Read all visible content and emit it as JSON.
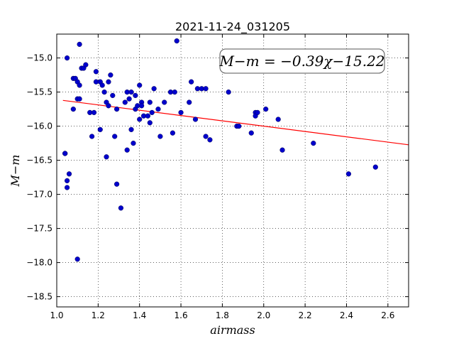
{
  "chart_data": {
    "type": "scatter",
    "title": "2021-11-24_031205",
    "xlabel": "airmass",
    "ylabel": "M−m",
    "xlim": [
      1.0,
      2.7
    ],
    "ylim": [
      -18.65,
      -14.65
    ],
    "y_inverted": true,
    "grid": true,
    "x_ticks": [
      "1.0",
      "1.2",
      "1.4",
      "1.6",
      "1.8",
      "2.0",
      "2.2",
      "2.4",
      "2.6"
    ],
    "x_tick_values": [
      1.0,
      1.2,
      1.4,
      1.6,
      1.8,
      2.0,
      2.2,
      2.4,
      2.6
    ],
    "y_ticks": [
      "−15.0",
      "−15.5",
      "−16.0",
      "−16.5",
      "−17.0",
      "−17.5",
      "−18.0",
      "−18.5"
    ],
    "y_tick_values": [
      -15.0,
      -15.5,
      -16.0,
      -16.5,
      -17.0,
      -17.5,
      -18.0,
      -18.5
    ],
    "annotation": "M−m = −0.39χ−15.22",
    "fit_line": {
      "slope": -0.39,
      "intercept": -15.22,
      "color": "#ff0000"
    },
    "point_color": "#0000cc",
    "points": [
      [
        1.04,
        -16.4
      ],
      [
        1.04,
        -16.4
      ],
      [
        1.05,
        -16.9
      ],
      [
        1.05,
        -16.8
      ],
      [
        1.05,
        -15.0
      ],
      [
        1.06,
        -16.7
      ],
      [
        1.08,
        -15.3
      ],
      [
        1.08,
        -15.75
      ],
      [
        1.09,
        -15.3
      ],
      [
        1.1,
        -15.6
      ],
      [
        1.1,
        -15.35
      ],
      [
        1.1,
        -17.95
      ],
      [
        1.11,
        -15.4
      ],
      [
        1.11,
        -15.6
      ],
      [
        1.11,
        -14.8
      ],
      [
        1.12,
        -15.15
      ],
      [
        1.13,
        -15.15
      ],
      [
        1.14,
        -15.1
      ],
      [
        1.16,
        -15.8
      ],
      [
        1.17,
        -16.15
      ],
      [
        1.18,
        -15.8
      ],
      [
        1.19,
        -15.2
      ],
      [
        1.19,
        -15.35
      ],
      [
        1.21,
        -16.05
      ],
      [
        1.21,
        -15.35
      ],
      [
        1.22,
        -15.4
      ],
      [
        1.23,
        -15.5
      ],
      [
        1.24,
        -15.65
      ],
      [
        1.24,
        -16.45
      ],
      [
        1.25,
        -15.35
      ],
      [
        1.25,
        -15.7
      ],
      [
        1.26,
        -15.25
      ],
      [
        1.27,
        -15.55
      ],
      [
        1.28,
        -16.15
      ],
      [
        1.29,
        -15.75
      ],
      [
        1.29,
        -16.85
      ],
      [
        1.31,
        -17.2
      ],
      [
        1.33,
        -15.65
      ],
      [
        1.34,
        -15.5
      ],
      [
        1.34,
        -16.35
      ],
      [
        1.35,
        -15.6
      ],
      [
        1.36,
        -15.5
      ],
      [
        1.36,
        -16.05
      ],
      [
        1.37,
        -16.25
      ],
      [
        1.38,
        -15.75
      ],
      [
        1.38,
        -15.55
      ],
      [
        1.39,
        -15.7
      ],
      [
        1.4,
        -15.9
      ],
      [
        1.4,
        -15.4
      ],
      [
        1.41,
        -15.65
      ],
      [
        1.41,
        -15.7
      ],
      [
        1.42,
        -15.85
      ],
      [
        1.44,
        -15.85
      ],
      [
        1.45,
        -15.65
      ],
      [
        1.45,
        -15.95
      ],
      [
        1.46,
        -15.8
      ],
      [
        1.47,
        -15.45
      ],
      [
        1.49,
        -15.75
      ],
      [
        1.5,
        -16.15
      ],
      [
        1.52,
        -15.65
      ],
      [
        1.55,
        -15.5
      ],
      [
        1.56,
        -16.1
      ],
      [
        1.57,
        -15.5
      ],
      [
        1.58,
        -14.75
      ],
      [
        1.6,
        -15.8
      ],
      [
        1.64,
        -15.65
      ],
      [
        1.65,
        -15.35
      ],
      [
        1.67,
        -15.9
      ],
      [
        1.68,
        -15.45
      ],
      [
        1.7,
        -15.45
      ],
      [
        1.72,
        -16.15
      ],
      [
        1.72,
        -15.45
      ],
      [
        1.74,
        -16.2
      ],
      [
        1.83,
        -15.5
      ],
      [
        1.87,
        -16.0
      ],
      [
        1.88,
        -16.0
      ],
      [
        1.94,
        -16.1
      ],
      [
        1.96,
        -15.8
      ],
      [
        1.96,
        -15.85
      ],
      [
        1.97,
        -15.8
      ],
      [
        2.01,
        -15.75
      ],
      [
        2.07,
        -15.9
      ],
      [
        2.09,
        -16.35
      ],
      [
        2.24,
        -16.25
      ],
      [
        2.41,
        -16.7
      ],
      [
        2.54,
        -16.6
      ]
    ]
  }
}
